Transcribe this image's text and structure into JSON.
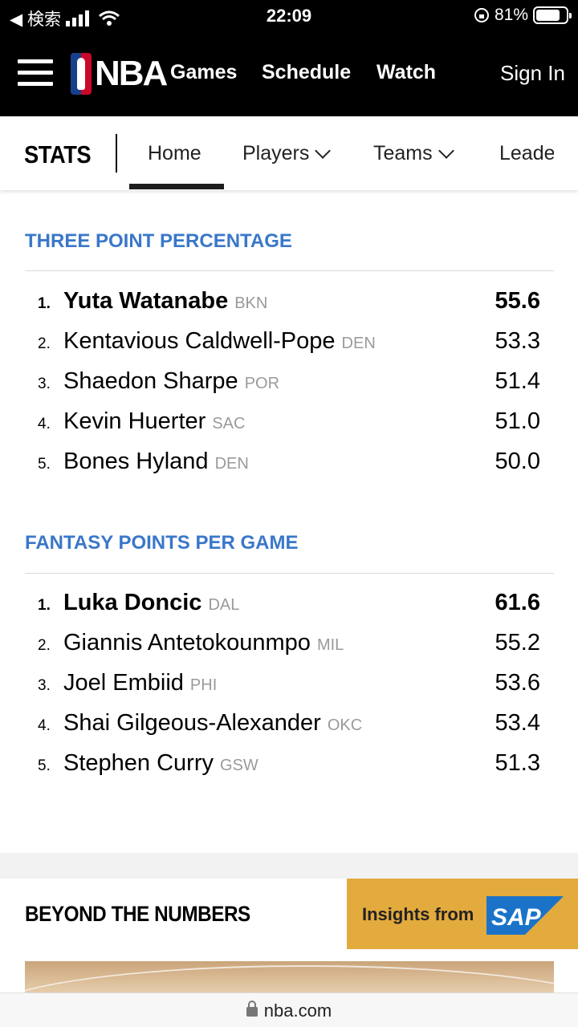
{
  "status_bar": {
    "back_label": "◀ 検索",
    "time": "22:09",
    "battery": "81%",
    "battery_level": 0.81
  },
  "header": {
    "logo_text": "NBA",
    "links": [
      "Games",
      "Schedule",
      "Watch"
    ],
    "sign_in": "Sign In"
  },
  "subnav": {
    "title": "STATS",
    "tabs": [
      "Home",
      "Players",
      "Teams",
      "Leade"
    ],
    "active_tab": "Home"
  },
  "leaderboards": [
    {
      "title": "THREE POINT PERCENTAGE",
      "rows": [
        {
          "rank": "1.",
          "name": "Yuta Watanabe",
          "team": "BKN",
          "value": "55.6"
        },
        {
          "rank": "2.",
          "name": "Kentavious Caldwell-Pope",
          "team": "DEN",
          "value": "53.3"
        },
        {
          "rank": "3.",
          "name": "Shaedon Sharpe",
          "team": "POR",
          "value": "51.4"
        },
        {
          "rank": "4.",
          "name": "Kevin Huerter",
          "team": "SAC",
          "value": "51.0"
        },
        {
          "rank": "5.",
          "name": "Bones Hyland",
          "team": "DEN",
          "value": "50.0"
        }
      ]
    },
    {
      "title": "FANTASY POINTS PER GAME",
      "rows": [
        {
          "rank": "1.",
          "name": "Luka Doncic",
          "team": "DAL",
          "value": "61.6"
        },
        {
          "rank": "2.",
          "name": "Giannis Antetokounmpo",
          "team": "MIL",
          "value": "55.2"
        },
        {
          "rank": "3.",
          "name": "Joel Embiid",
          "team": "PHI",
          "value": "53.6"
        },
        {
          "rank": "4.",
          "name": "Shai Gilgeous-Alexander",
          "team": "OKC",
          "value": "53.4"
        },
        {
          "rank": "5.",
          "name": "Stephen Curry",
          "team": "GSW",
          "value": "51.3"
        }
      ]
    }
  ],
  "beyond": {
    "title": "BEYOND THE NUMBERS",
    "sponsor_text": "Insights from",
    "sponsor_logo": "SAP"
  },
  "urlbar": {
    "url": "nba.com"
  },
  "colors": {
    "accent": "#3a77c9",
    "sponsor_bg": "#e3aa3d",
    "sap_blue": "#1a73c8"
  }
}
